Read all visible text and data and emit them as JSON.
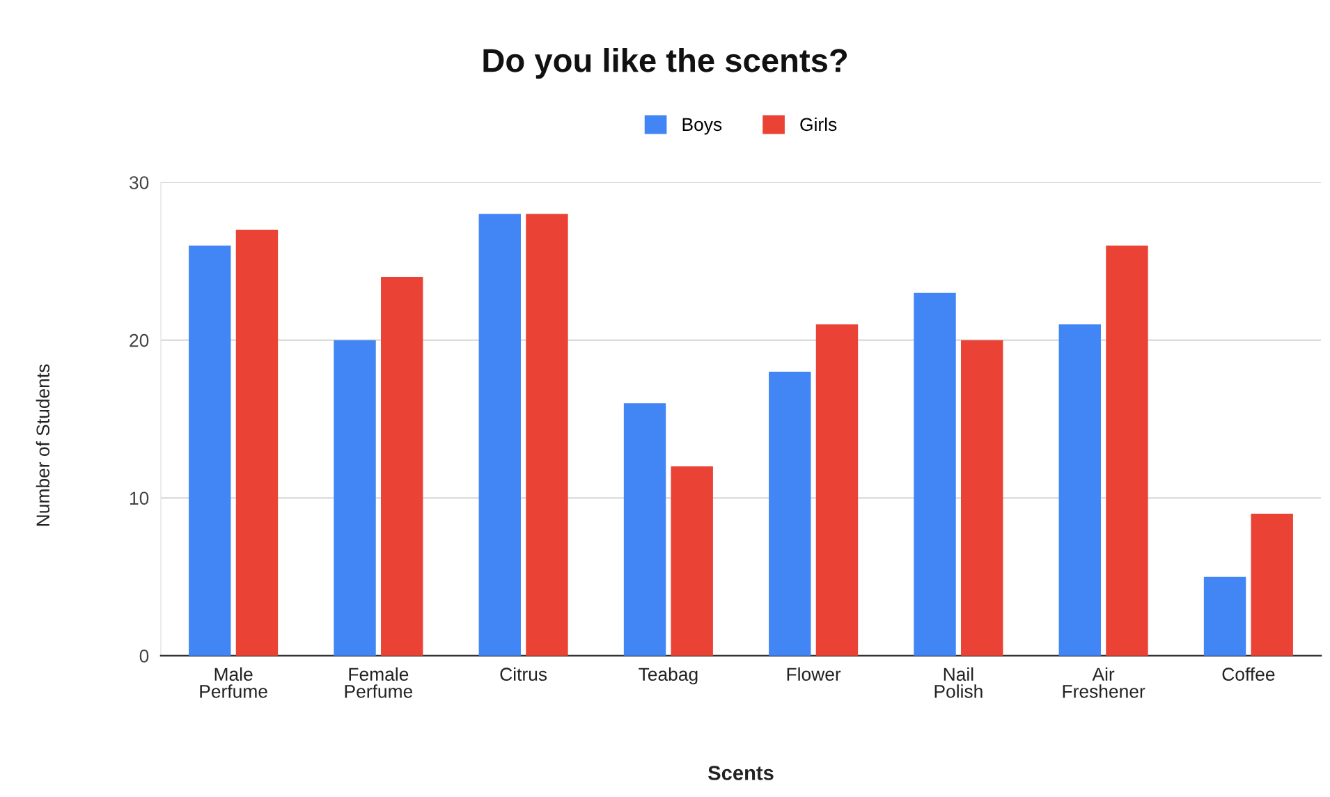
{
  "chart_data": {
    "type": "bar",
    "title": "Do you like the scents?",
    "xlabel": "Scents",
    "ylabel": "Number of Students",
    "categories": [
      "Male\nPerfume",
      "Female\nPerfume",
      "Citrus",
      "Teabag",
      "Flower",
      "Nail\nPolish",
      "Air\nFreshener",
      "Coffee"
    ],
    "series": [
      {
        "name": "Boys",
        "color": "#4285f4",
        "values": [
          26,
          20,
          28,
          16,
          18,
          23,
          21,
          5
        ]
      },
      {
        "name": "Girls",
        "color": "#ea4335",
        "values": [
          27,
          24,
          28,
          12,
          21,
          20,
          26,
          9
        ]
      }
    ],
    "ylim": [
      0,
      30
    ],
    "yticks": [
      0,
      10,
      20,
      30
    ],
    "grid": "y",
    "legend": "top"
  }
}
